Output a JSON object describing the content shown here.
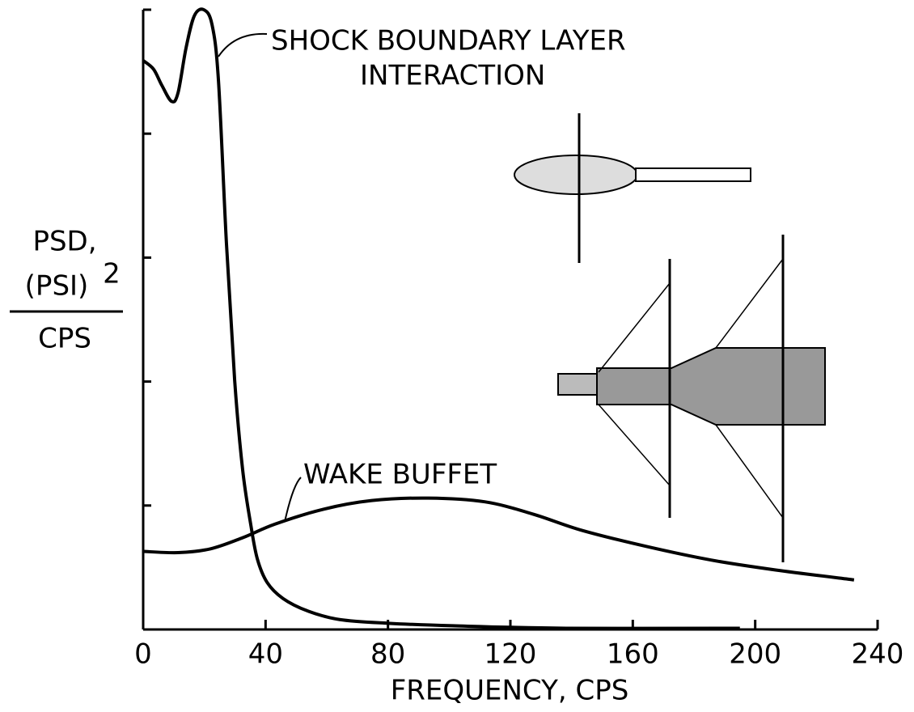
{
  "chart_data": {
    "type": "line",
    "xlabel": "FREQUENCY, CPS",
    "ylabel": {
      "lines": [
        "PSD,",
        "(PSI)",
        "CPS"
      ],
      "superscript": "2"
    },
    "xlim": [
      0,
      240
    ],
    "xticks": [
      0,
      40,
      80,
      120,
      160,
      200,
      240
    ],
    "ylim": [
      0,
      5
    ],
    "yticks": [
      0,
      1,
      2,
      3,
      4,
      5
    ],
    "series": [
      {
        "label_lines": [
          "SHOCK BOUNDARY LAYER",
          "INTERACTION"
        ],
        "color": "#000000",
        "x": [
          0,
          3.4,
          6.1,
          9.3,
          11.4,
          14.0,
          16.7,
          19.8,
          22.5,
          24.6,
          27.2,
          29.9,
          32.5,
          35.2,
          37.3,
          40.5,
          45.7,
          53.7,
          64.2,
          80.1,
          101.2,
          138.2,
          195
        ],
        "values": [
          4.59,
          4.52,
          4.39,
          4.26,
          4.33,
          4.69,
          4.95,
          5.0,
          4.88,
          4.43,
          3.12,
          2.01,
          1.29,
          0.84,
          0.57,
          0.38,
          0.25,
          0.15,
          0.08,
          0.05,
          0.03,
          0.01,
          0.01
        ]
      },
      {
        "label_lines": [
          "WAKE BUFFET"
        ],
        "color": "#000000",
        "x": [
          0,
          11.4,
          21.9,
          32.5,
          43.1,
          58.9,
          74.7,
          93.2,
          111.6,
          127.5,
          143.3,
          164.4,
          185.6,
          206.7,
          232.3
        ],
        "values": [
          0.63,
          0.62,
          0.65,
          0.74,
          0.85,
          0.97,
          1.04,
          1.06,
          1.03,
          0.93,
          0.8,
          0.67,
          0.56,
          0.48,
          0.4
        ]
      }
    ]
  }
}
